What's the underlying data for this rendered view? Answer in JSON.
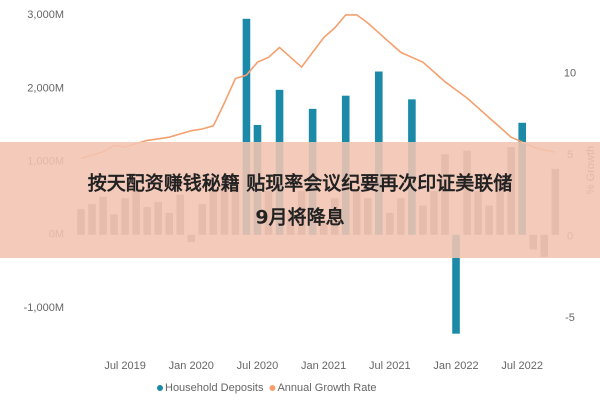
{
  "chart_data": {
    "type": "bar-line",
    "categories": [
      null,
      null,
      null,
      null,
      "Jul 2019",
      null,
      null,
      null,
      null,
      null,
      "Jan 2020",
      null,
      null,
      null,
      null,
      null,
      "Jul 2020",
      null,
      null,
      null,
      null,
      null,
      "Jan 2021",
      null,
      null,
      null,
      null,
      null,
      "Jul 2021",
      null,
      null,
      null,
      null,
      null,
      "Jan 2022",
      null,
      null,
      null,
      null,
      null,
      "Jul 2022",
      null,
      null,
      null
    ],
    "series": [
      {
        "name": "Household Deposits",
        "color": "#1b8aa8",
        "other_color": "#8c8c8c",
        "highlighted": [
          15,
          16,
          18,
          21,
          24,
          27,
          30,
          34,
          40
        ],
        "values": [
          350,
          420,
          520,
          280,
          500,
          600,
          380,
          450,
          300,
          550,
          -100,
          420,
          600,
          700,
          750,
          2950,
          1500,
          600,
          1980,
          300,
          600,
          1720,
          200,
          500,
          1900,
          600,
          500,
          2230,
          300,
          500,
          1850,
          400,
          600,
          1100,
          -1350,
          1150,
          600,
          400,
          800,
          1200,
          1530,
          -200,
          -300,
          900
        ]
      },
      {
        "name": "Annual Growth Rate",
        "color": "#f5a06e",
        "axis": "y2",
        "values": [
          4.8,
          5.0,
          5.2,
          5.6,
          5.5,
          5.7,
          5.9,
          6.0,
          6.1,
          6.3,
          6.5,
          6.6,
          6.8,
          8.2,
          9.7,
          9.9,
          10.7,
          11.0,
          11.6,
          11.0,
          10.4,
          11.3,
          12.2,
          12.8,
          13.6,
          13.6,
          13.1,
          12.5,
          11.9,
          11.3,
          11.0,
          10.7,
          10.1,
          9.5,
          9.0,
          8.5,
          7.9,
          7.3,
          6.7,
          6.1,
          5.8,
          5.5,
          5.3,
          5.2
        ]
      }
    ],
    "ylim": [
      -1450,
      3070
    ],
    "yticks": [
      {
        "value": -1000,
        "label": "-1,000M"
      },
      {
        "value": 0,
        "label": "0M"
      },
      {
        "value": 1000,
        "label": "1,000M"
      },
      {
        "value": 2000,
        "label": "2,000M"
      },
      {
        "value": 3000,
        "label": "3,000M"
      }
    ],
    "y2lim": [
      -6.4,
      13.9
    ],
    "y2ticks": [
      -5,
      0,
      5,
      10
    ],
    "y2label": "% Growth",
    "grid": false
  },
  "overlay": {
    "lines": [
      "按天配资赚钱秘籍 贴现率会议纪要再次印证美联储",
      "9月将降息"
    ]
  }
}
